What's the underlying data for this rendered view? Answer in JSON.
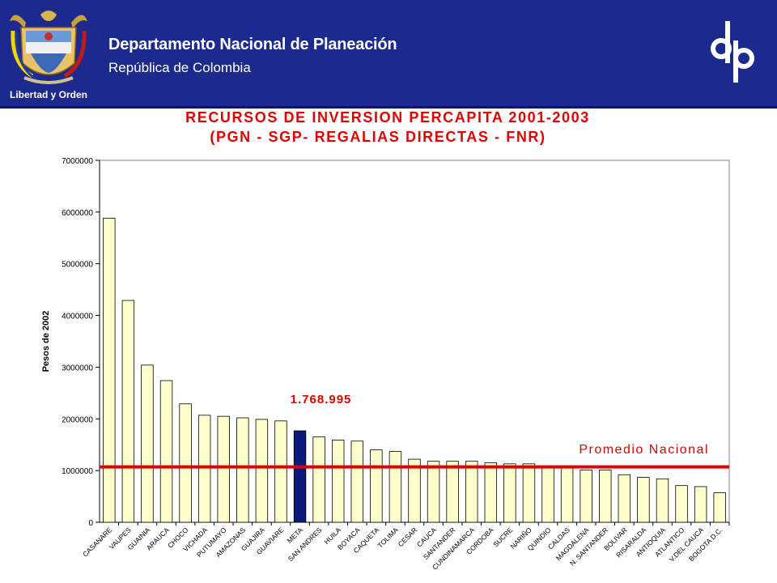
{
  "header": {
    "org_name": "Departamento Nacional de Planeación",
    "org_sub": "República de Colombia",
    "motto": "Libertad y Orden",
    "background": "#1b2a8c",
    "logo": "dnp-logo-icon",
    "emblem": "colombia-coat-of-arms-icon"
  },
  "chart_data": {
    "type": "bar",
    "title": "RECURSOS DE INVERSION PERCAPITA 2001-2003",
    "subtitle": "(PGN - SGP- REGALIAS DIRECTAS - FNR)",
    "ylabel": "Pesos de 2002",
    "xlabel": "",
    "ylim": [
      0,
      7000000
    ],
    "yticks": [
      "0",
      "1000000",
      "2000000",
      "3000000",
      "4000000",
      "5000000",
      "6000000",
      "7000000"
    ],
    "grid": false,
    "legend": "none",
    "bar_color": "#ffffcc",
    "highlight_color": "#0a1a78",
    "highlight_category": "META",
    "highlight_label": "1.768.995",
    "reference_line": {
      "label": "Promedio Nacional",
      "value": 1070000,
      "color": "#e00000"
    },
    "categories": [
      "CASANARE",
      "VAUPES",
      "GUAINIA",
      "ARAUCA",
      "CHOCO",
      "VICHADA",
      "PUTUMAYO",
      "AMAZONAS",
      "GUAJIRA",
      "GUAVIARE",
      "META",
      "SAN ANDRES",
      "HUILA",
      "BOYACA",
      "CAQUETA",
      "TOLIMA",
      "CESAR",
      "CAUCA",
      "SANTANDER",
      "CUNDINAMARCA",
      "CORDOBA",
      "SUCRE",
      "NARIÑO",
      "QUINDIO",
      "CALDAS",
      "MAGDALENA",
      "N. SANTANDER",
      "BOLIVAR",
      "RISARALDA",
      "ANTIOQUIA",
      "ATLANTICO",
      "V.DEL CAUCA",
      "BOGOTA D.C."
    ],
    "values": [
      5880000,
      4290000,
      3040000,
      2740000,
      2290000,
      2070000,
      2050000,
      2020000,
      1990000,
      1960000,
      1768995,
      1650000,
      1590000,
      1570000,
      1400000,
      1370000,
      1220000,
      1180000,
      1180000,
      1180000,
      1150000,
      1130000,
      1130000,
      1070000,
      1060000,
      1010000,
      1010000,
      920000,
      870000,
      840000,
      710000,
      690000,
      570000
    ]
  }
}
